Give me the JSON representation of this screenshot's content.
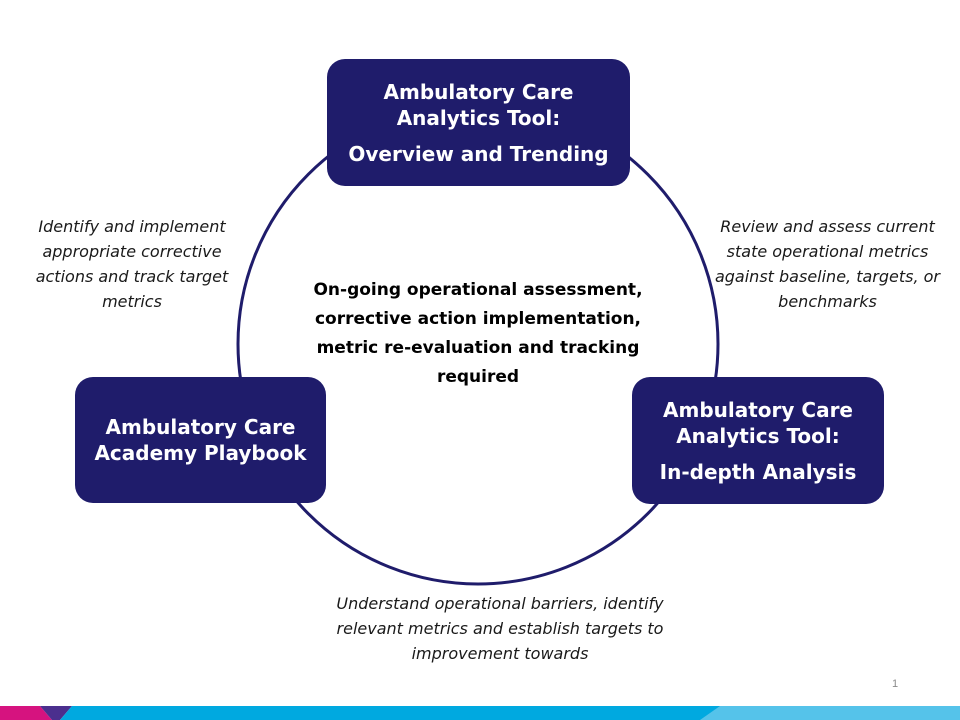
{
  "colors": {
    "box_fill": "#1f1c6b",
    "ring_stroke": "#1f1c6b",
    "footer_cyan": "#00a9e0",
    "footer_magenta": "#d6137f",
    "footer_purple": "#4b2f8e",
    "footer_light_blue": "#9ad8f2"
  },
  "boxes": {
    "top": {
      "title": "Ambulatory Care Analytics Tool:",
      "subtitle": "Overview and Trending"
    },
    "right": {
      "title": "Ambulatory Care Analytics Tool:",
      "subtitle": "In-depth Analysis"
    },
    "left": {
      "title": "Ambulatory Care Academy Playbook"
    }
  },
  "notes": {
    "left": "Identify and implement appropriate corrective actions and track target metrics",
    "right": "Review and assess current state operational metrics against baseline, targets, or benchmarks",
    "bottom": "Understand operational barriers, identify relevant metrics and establish targets to improvement towards"
  },
  "center_text": "On-going operational assessment, corrective action implementation, metric re-evaluation and tracking required",
  "page_number": "1"
}
